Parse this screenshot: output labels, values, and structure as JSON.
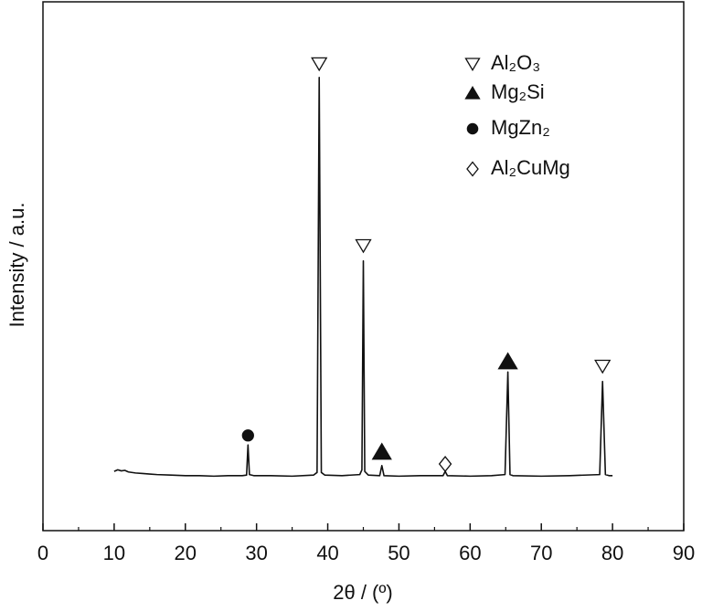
{
  "chart_data": {
    "type": "line",
    "x_label": "2θ / (º)",
    "y_label": "Intensity / a.u.",
    "color": "#111111",
    "xlim": [
      0,
      90
    ],
    "xticks": [
      0,
      10,
      20,
      30,
      40,
      50,
      60,
      70,
      80,
      90
    ],
    "xminorticks": [
      5,
      15,
      25,
      35,
      45,
      55,
      65,
      75,
      85
    ],
    "ylim": [
      0,
      100
    ],
    "x": [
      10,
      10.5,
      11,
      11.5,
      12,
      13,
      14,
      15,
      16,
      18,
      20,
      22,
      24,
      26,
      28,
      28.6,
      28.8,
      29,
      29.6,
      32,
      35,
      38,
      38.5,
      38.8,
      39.1,
      39.6,
      42,
      44.5,
      44.8,
      45.0,
      45.2,
      45.7,
      47.3,
      47.6,
      47.9,
      50,
      53,
      56.2,
      56.5,
      56.8,
      60,
      63,
      64.9,
      65.3,
      65.6,
      66,
      70,
      74,
      78.2,
      78.6,
      79.0,
      79.5,
      80
    ],
    "values": [
      11.2,
      11.5,
      11.3,
      11.4,
      11.1,
      10.9,
      10.8,
      10.7,
      10.6,
      10.5,
      10.4,
      10.4,
      10.3,
      10.4,
      10.4,
      10.5,
      16.2,
      10.6,
      10.4,
      10.4,
      10.3,
      10.5,
      11.0,
      85.7,
      11.0,
      10.5,
      10.4,
      10.6,
      11.5,
      51.0,
      11.2,
      10.5,
      10.4,
      12.3,
      10.4,
      10.3,
      10.4,
      10.4,
      11.2,
      10.4,
      10.3,
      10.4,
      10.6,
      30.0,
      10.6,
      10.4,
      10.3,
      10.4,
      10.6,
      28.2,
      10.6,
      10.4,
      10.4
    ],
    "markers": [
      {
        "name": "Al₂O₃",
        "symbol": "triangle-down-open",
        "x": [
          38.8,
          45.0,
          78.6
        ],
        "y": [
          88.3,
          53.9,
          31.1
        ]
      },
      {
        "name": "Mg₂Si",
        "symbol": "triangle-up-filled",
        "x": [
          47.6,
          65.3
        ],
        "y": [
          14.9,
          32.0
        ]
      },
      {
        "name": "MgZn₂",
        "symbol": "circle-filled",
        "x": [
          28.8
        ],
        "y": [
          18.0
        ]
      },
      {
        "name": "Al₂CuMg",
        "symbol": "diamond-open",
        "x": [
          56.5
        ],
        "y": [
          12.6
        ]
      }
    ]
  }
}
